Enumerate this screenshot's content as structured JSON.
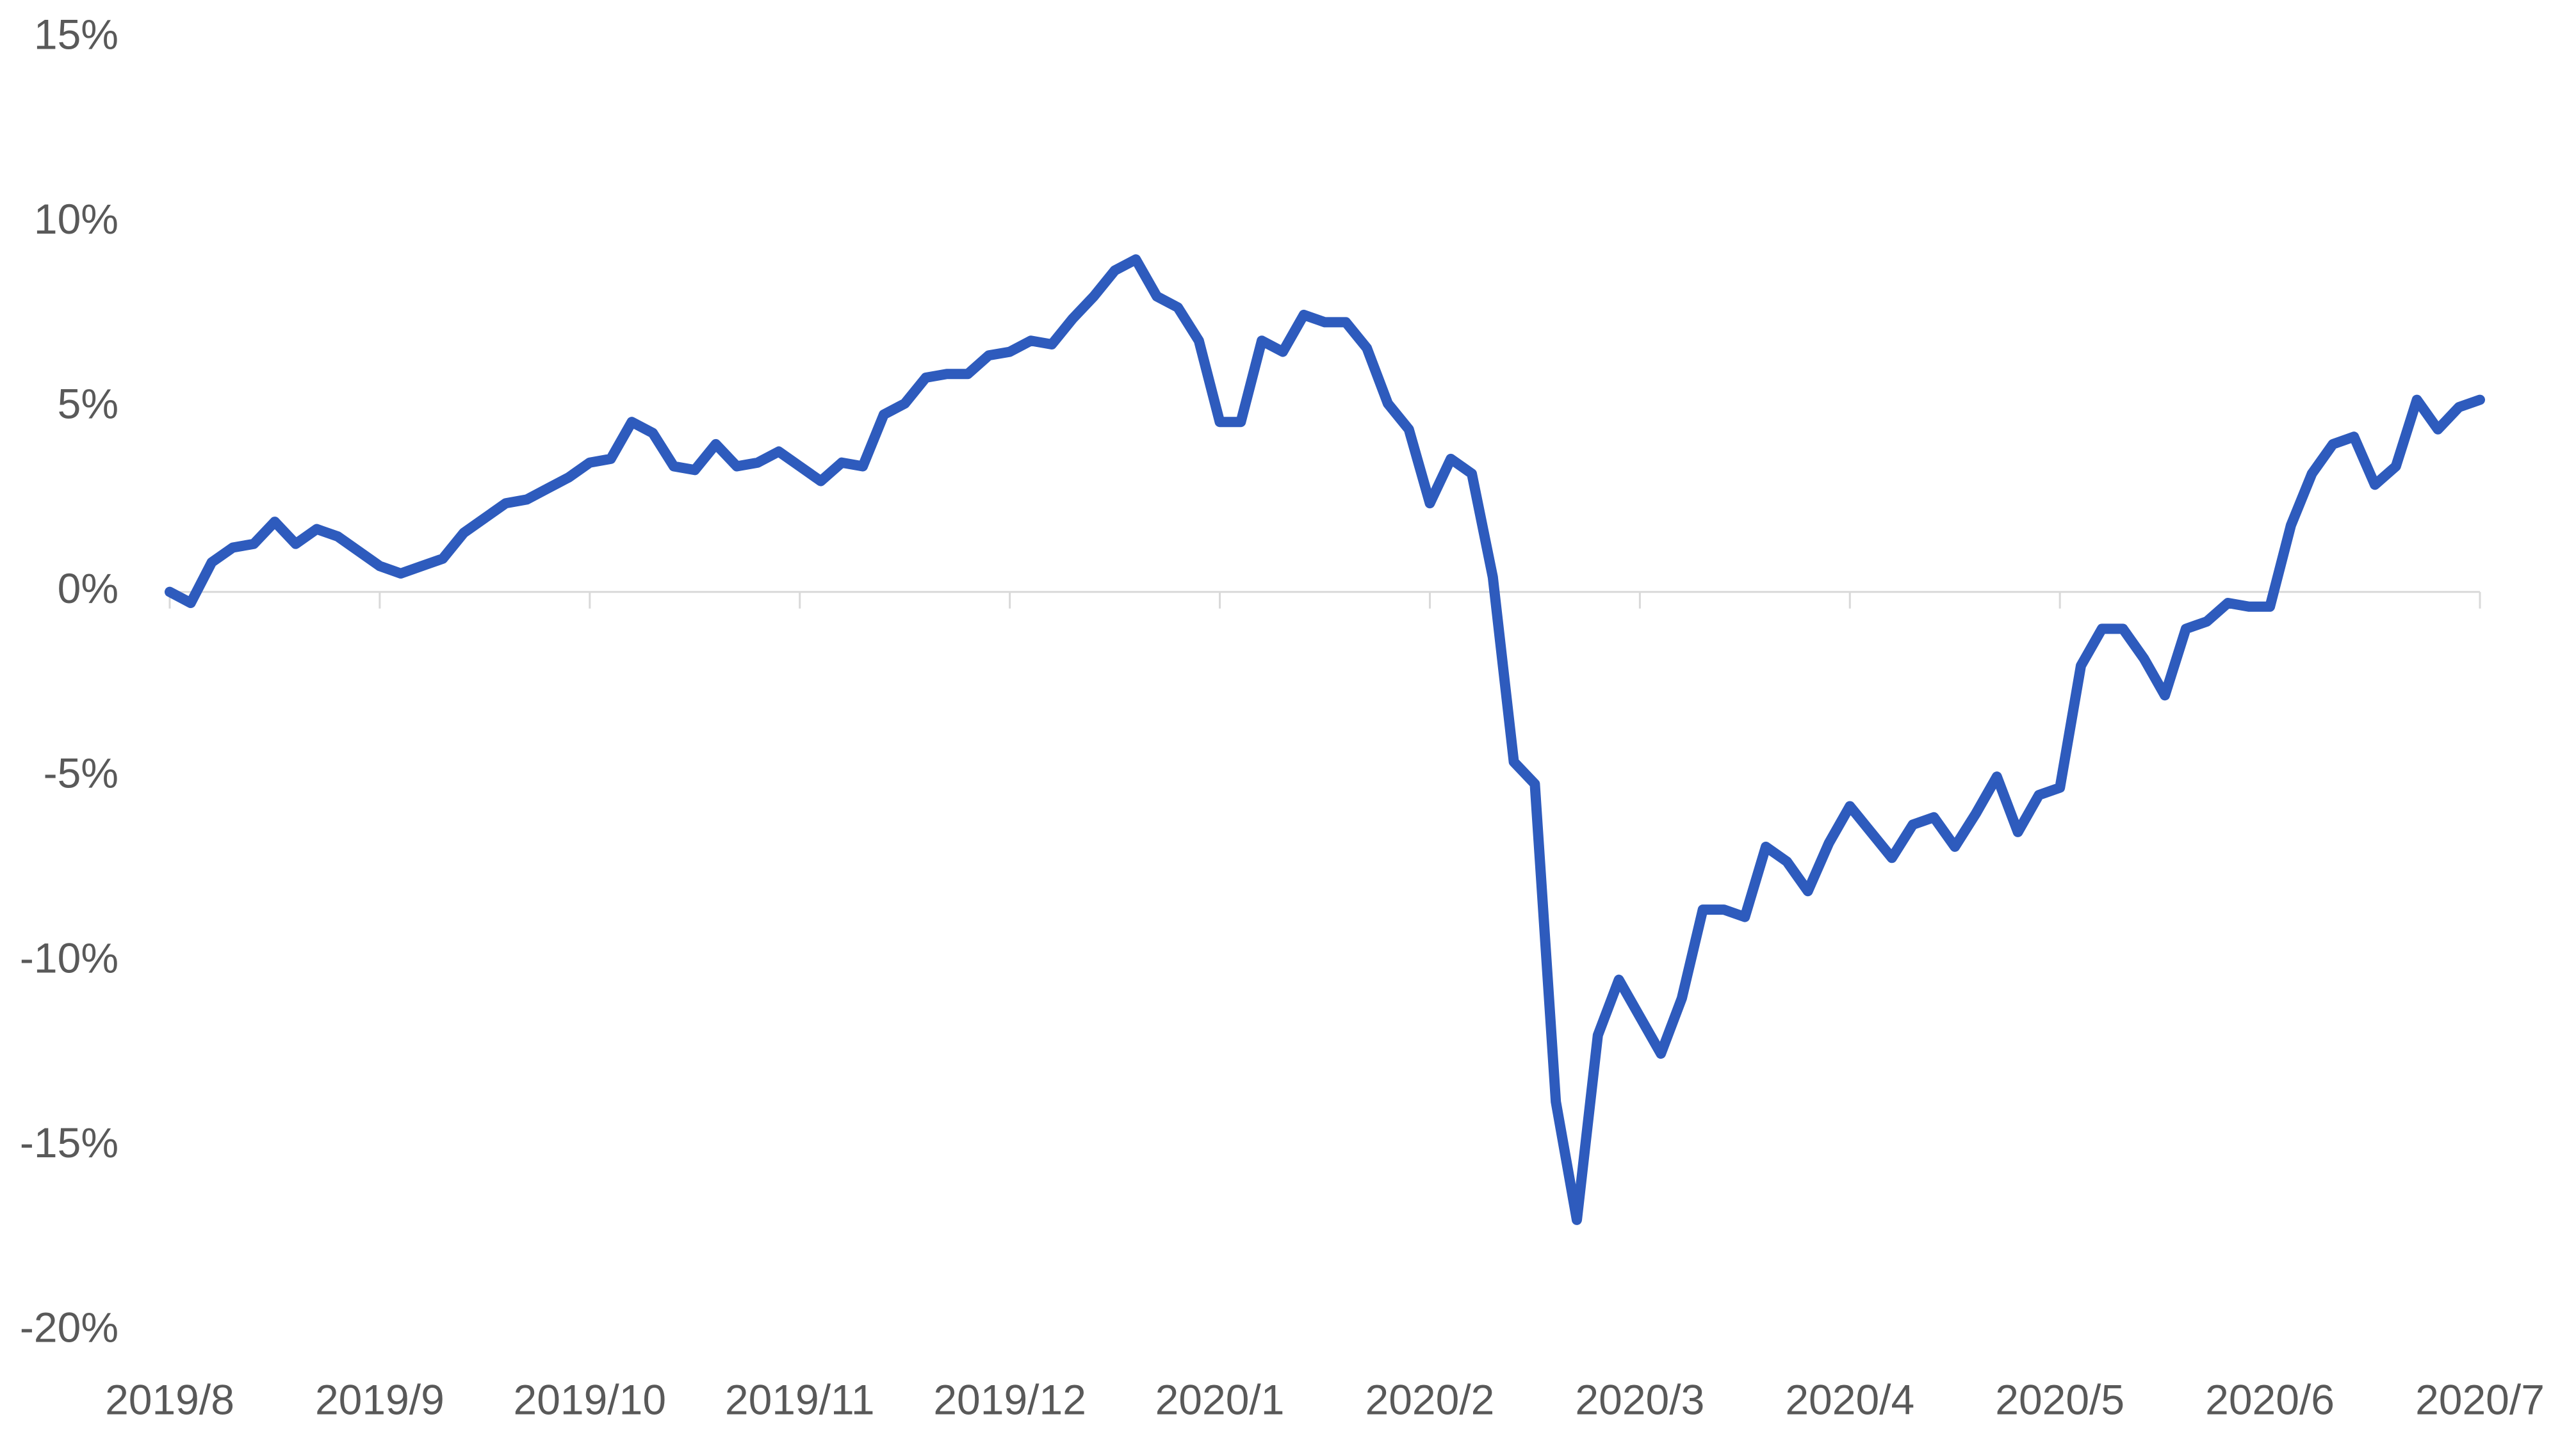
{
  "chart_data": {
    "type": "line",
    "categories": [
      "2019/8",
      null,
      null,
      null,
      null,
      null,
      null,
      null,
      null,
      null,
      "2019/9",
      null,
      null,
      null,
      null,
      null,
      null,
      null,
      null,
      null,
      "2019/10",
      null,
      null,
      null,
      null,
      null,
      null,
      null,
      null,
      null,
      "2019/11",
      null,
      null,
      null,
      null,
      null,
      null,
      null,
      null,
      null,
      "2019/12",
      null,
      null,
      null,
      null,
      null,
      null,
      null,
      null,
      null,
      "2020/1",
      null,
      null,
      null,
      null,
      null,
      null,
      null,
      null,
      null,
      "2020/2",
      null,
      null,
      null,
      null,
      null,
      null,
      null,
      null,
      null,
      "2020/3",
      null,
      null,
      null,
      null,
      null,
      null,
      null,
      null,
      null,
      "2020/4",
      null,
      null,
      null,
      null,
      null,
      null,
      null,
      null,
      null,
      "2020/5",
      null,
      null,
      null,
      null,
      null,
      null,
      null,
      null,
      null,
      "2020/6",
      null,
      null,
      null,
      null,
      null,
      null,
      null,
      null,
      null,
      "2020/7"
    ],
    "series": [
      {
        "color": "#2e5bbd",
        "values": [
          0,
          -0.3,
          0.8,
          1.2,
          1.3,
          1.9,
          1.3,
          1.7,
          1.5,
          1.1,
          0.7,
          0.5,
          0.7,
          0.9,
          1.6,
          2.0,
          2.4,
          2.5,
          2.8,
          3.1,
          3.5,
          3.6,
          4.6,
          4.3,
          3.4,
          3.3,
          4.0,
          3.4,
          3.5,
          3.8,
          3.4,
          3.0,
          3.5,
          3.4,
          4.8,
          5.1,
          5.8,
          5.9,
          5.9,
          6.4,
          6.5,
          6.8,
          6.7,
          7.4,
          8.0,
          8.7,
          9.0,
          8.0,
          7.7,
          6.8,
          4.6,
          4.6,
          6.8,
          6.5,
          7.5,
          7.3,
          7.3,
          6.6,
          5.1,
          4.4,
          2.4,
          3.6,
          3.2,
          0.4,
          -4.6,
          -5.2,
          -13.8,
          -17.0,
          -12.0,
          -10.5,
          -11.5,
          -12.5,
          -11.0,
          -8.6,
          -8.6,
          -8.8,
          -6.9,
          -7.3,
          -8.1,
          -6.8,
          -5.8,
          -6.5,
          -7.2,
          -6.3,
          -6.1,
          -6.9,
          -6.0,
          -5.0,
          -6.5,
          -5.5,
          -5.3,
          -2.0,
          -1.0,
          -1.0,
          -1.8,
          -2.8,
          -1.0,
          -0.8,
          -0.3,
          -0.4,
          -0.4,
          1.8,
          3.2,
          4.0,
          4.2,
          2.9,
          3.4,
          5.2,
          4.4,
          5.0,
          5.2
        ]
      }
    ],
    "ylim": [
      -20,
      15
    ],
    "yticks": [
      {
        "value": -20,
        "label": "-20%"
      },
      {
        "value": -15,
        "label": "-15%"
      },
      {
        "value": -10,
        "label": "-10%"
      },
      {
        "value": -5,
        "label": "-5%"
      },
      {
        "value": 0,
        "label": "0%"
      },
      {
        "value": 5,
        "label": "5%"
      },
      {
        "value": 10,
        "label": "10%"
      },
      {
        "value": 15,
        "label": "15%"
      }
    ],
    "grid": false
  }
}
